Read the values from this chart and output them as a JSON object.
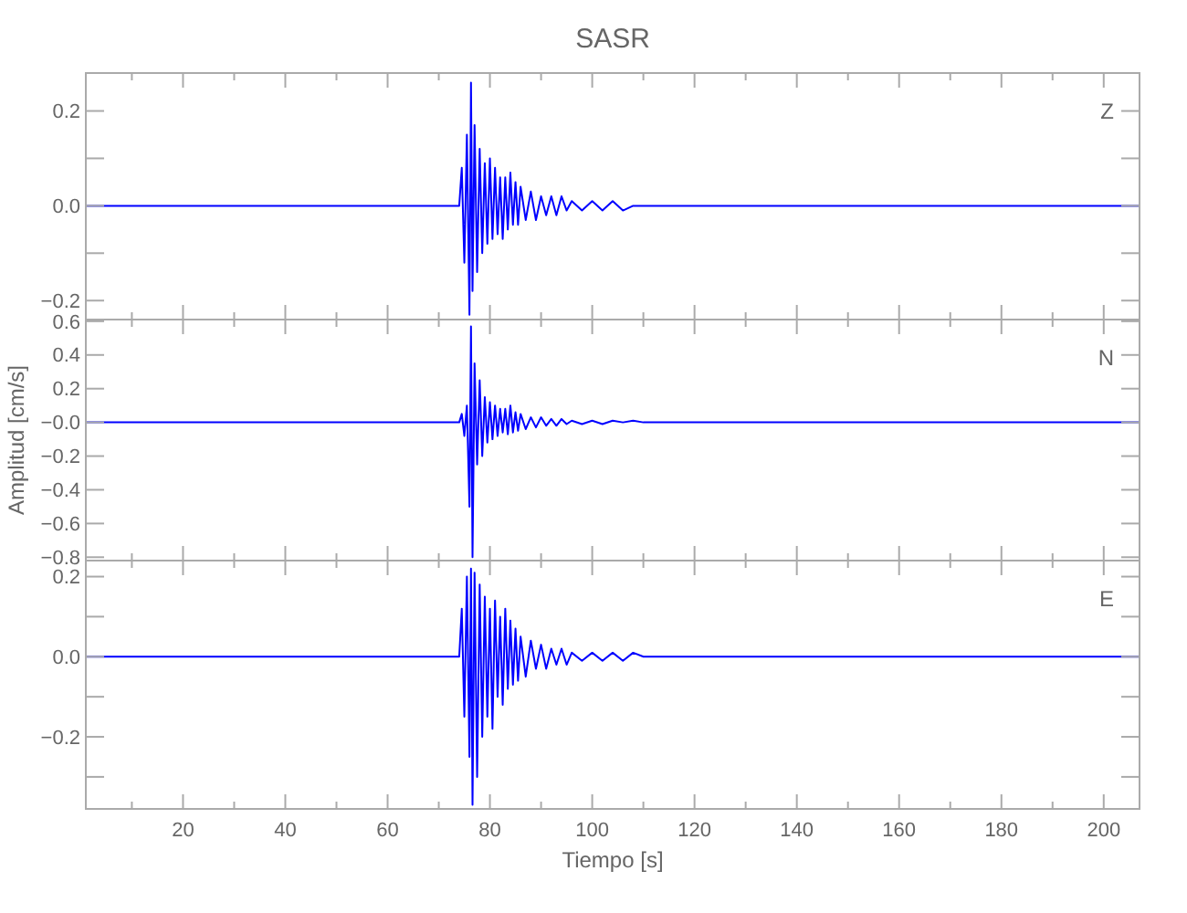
{
  "chart_data": [
    {
      "type": "line",
      "title": "SASR",
      "annotations": [
        "Z"
      ],
      "tick_labels": "y",
      "x": [
        1,
        74,
        74.5,
        75,
        75.5,
        76,
        76.3,
        76.6,
        77,
        77.5,
        78,
        78.5,
        79,
        79.5,
        80,
        80.5,
        81,
        81.5,
        82,
        82.5,
        83,
        83.5,
        84,
        84.5,
        85,
        85.5,
        86,
        87,
        88,
        89,
        90,
        91,
        92,
        93,
        94,
        95,
        96,
        98,
        100,
        102,
        104,
        106,
        108,
        110,
        115,
        120,
        130,
        207
      ],
      "series": [
        {
          "color": "#0000ff",
          "values": [
            0,
            0,
            0.08,
            -0.12,
            0.15,
            -0.23,
            0.26,
            -0.18,
            0.17,
            -0.14,
            0.12,
            -0.1,
            0.09,
            -0.08,
            0.1,
            -0.07,
            0.08,
            -0.06,
            0.06,
            -0.07,
            0.06,
            -0.05,
            0.07,
            -0.04,
            0.05,
            -0.04,
            0.04,
            -0.03,
            0.03,
            -0.03,
            0.02,
            -0.02,
            0.02,
            -0.02,
            0.02,
            -0.01,
            0.01,
            -0.01,
            0.01,
            -0.01,
            0.01,
            -0.01,
            0,
            0,
            0,
            0,
            0,
            0
          ]
        }
      ],
      "xlim": [
        1,
        207
      ],
      "xticks": [
        {
          "value": 20,
          "label": null
        },
        {
          "value": 40,
          "label": null
        },
        {
          "value": 60,
          "label": null
        },
        {
          "value": 80,
          "label": null
        },
        {
          "value": 100,
          "label": null
        },
        {
          "value": 120,
          "label": null
        },
        {
          "value": 140,
          "label": null
        },
        {
          "value": 160,
          "label": null
        },
        {
          "value": 180,
          "label": null
        },
        {
          "value": 200,
          "label": null
        }
      ],
      "ylim": [
        -0.24,
        0.28
      ],
      "yticks": [
        {
          "value": -0.2,
          "label": "−0.2"
        },
        {
          "value": -0.1,
          "label": null
        },
        {
          "value": 0,
          "label": "0.0"
        },
        {
          "value": 0.1,
          "label": null
        },
        {
          "value": 0.2,
          "label": "0.2"
        }
      ],
      "grid": false,
      "line_style": "solid",
      "marker": "none"
    },
    {
      "type": "line",
      "ylabel": "Amplitud [cm/s]",
      "annotations": [
        "N"
      ],
      "tick_labels": "y",
      "x": [
        1,
        74,
        74.5,
        75,
        75.5,
        76,
        76.3,
        76.6,
        77,
        77.5,
        78,
        78.5,
        79,
        79.5,
        80,
        80.5,
        81,
        81.5,
        82,
        82.5,
        83,
        83.5,
        84,
        84.5,
        85,
        85.5,
        86,
        87,
        88,
        89,
        90,
        91,
        92,
        93,
        94,
        95,
        96,
        98,
        100,
        102,
        104,
        106,
        108,
        110,
        115,
        120,
        130,
        207
      ],
      "series": [
        {
          "color": "#0000ff",
          "values": [
            0,
            0,
            0.05,
            -0.08,
            0.1,
            -0.5,
            0.57,
            -0.8,
            0.35,
            -0.25,
            0.25,
            -0.2,
            0.15,
            -0.12,
            0.12,
            -0.1,
            0.1,
            -0.08,
            0.08,
            -0.06,
            0.08,
            -0.07,
            0.1,
            -0.06,
            0.06,
            -0.05,
            0.05,
            -0.04,
            0.03,
            -0.03,
            0.03,
            -0.02,
            0.02,
            -0.02,
            0.02,
            -0.01,
            0.01,
            -0.01,
            0.01,
            -0.01,
            0.01,
            0,
            0.01,
            0,
            0,
            0,
            0,
            0
          ]
        }
      ],
      "xlim": [
        1,
        207
      ],
      "xticks": [
        {
          "value": 20,
          "label": null
        },
        {
          "value": 40,
          "label": null
        },
        {
          "value": 60,
          "label": null
        },
        {
          "value": 80,
          "label": null
        },
        {
          "value": 100,
          "label": null
        },
        {
          "value": 120,
          "label": null
        },
        {
          "value": 140,
          "label": null
        },
        {
          "value": 160,
          "label": null
        },
        {
          "value": 180,
          "label": null
        },
        {
          "value": 200,
          "label": null
        }
      ],
      "ylim": [
        -0.82,
        0.61
      ],
      "yticks": [
        {
          "value": -0.8,
          "label": "−0.8"
        },
        {
          "value": -0.6,
          "label": "−0.6"
        },
        {
          "value": -0.4,
          "label": "−0.4"
        },
        {
          "value": -0.2,
          "label": "−0.2"
        },
        {
          "value": 0,
          "label": "−0.0"
        },
        {
          "value": 0.2,
          "label": "0.2"
        },
        {
          "value": 0.4,
          "label": "0.4"
        },
        {
          "value": 0.6,
          "label": "0.6"
        }
      ],
      "grid": false,
      "line_style": "solid",
      "marker": "none"
    },
    {
      "type": "line",
      "xlabel": "Tiempo [s]",
      "annotations": [
        "E"
      ],
      "x": [
        1,
        74,
        74.5,
        75,
        75.5,
        76,
        76.3,
        76.6,
        77,
        77.5,
        78,
        78.5,
        79,
        79.5,
        80,
        80.5,
        81,
        81.5,
        82,
        82.5,
        83,
        83.5,
        84,
        84.5,
        85,
        85.5,
        86,
        87,
        88,
        89,
        90,
        91,
        92,
        93,
        94,
        95,
        96,
        98,
        100,
        102,
        104,
        106,
        108,
        110,
        115,
        120,
        130,
        207
      ],
      "series": [
        {
          "color": "#0000ff",
          "values": [
            0,
            0,
            0.12,
            -0.15,
            0.2,
            -0.25,
            0.22,
            -0.37,
            0.21,
            -0.3,
            0.18,
            -0.2,
            0.15,
            -0.15,
            0.12,
            -0.18,
            0.14,
            -0.1,
            0.1,
            -0.12,
            0.12,
            -0.08,
            0.09,
            -0.07,
            0.07,
            -0.06,
            0.05,
            -0.05,
            0.04,
            -0.03,
            0.03,
            -0.03,
            0.02,
            -0.02,
            0.02,
            -0.02,
            0.01,
            -0.01,
            0.01,
            -0.01,
            0.01,
            -0.01,
            0.01,
            0,
            0,
            0,
            0,
            0
          ]
        }
      ],
      "xlim": [
        1,
        207
      ],
      "xticks": [
        20,
        40,
        60,
        80,
        100,
        120,
        140,
        160,
        180,
        200
      ],
      "ylim": [
        -0.38,
        0.24
      ],
      "yticks": [
        {
          "value": -0.3,
          "label": null
        },
        {
          "value": -0.2,
          "label": "−0.2"
        },
        {
          "value": -0.1,
          "label": null
        },
        {
          "value": 0,
          "label": "0.0"
        },
        {
          "value": 0.1,
          "label": null
        },
        {
          "value": 0.2,
          "label": "0.2"
        }
      ],
      "grid": false,
      "line_style": "solid",
      "marker": "none"
    }
  ]
}
